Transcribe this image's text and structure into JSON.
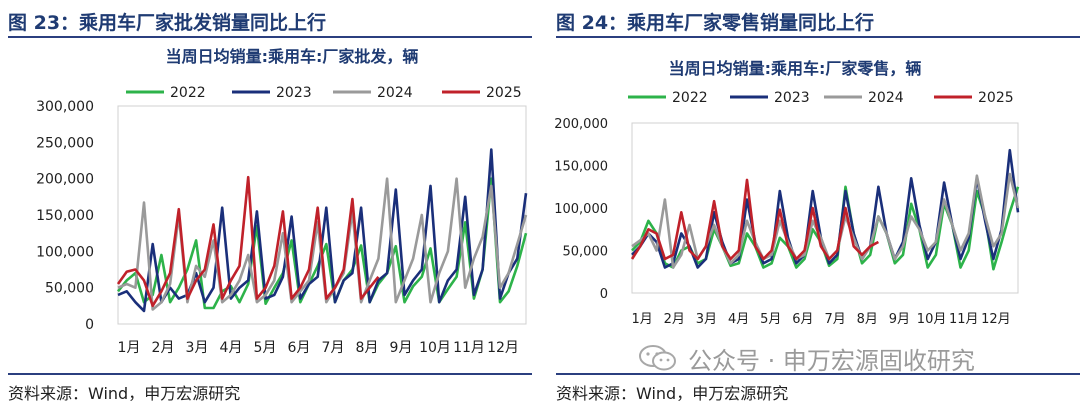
{
  "charts": [
    {
      "figure_title": "图 23：乘用车厂家批发销量同比上行",
      "source": "资料来源：Wind，申万宏源研究"
    },
    {
      "figure_title": "图 24：乘用车厂家零售销量同比上行",
      "source": "资料来源：Wind，申万宏源研究"
    }
  ],
  "watermark": {
    "text": "公众号 · 申万宏源固收研究",
    "icon": "wechat-icon"
  },
  "chart_data": [
    {
      "type": "line",
      "title": "当周日均销量:乘用车:厂家批发，辆",
      "xlabel": "",
      "ylabel": "",
      "x_ticks": [
        "1月",
        "2月",
        "3月",
        "4月",
        "5月",
        "6月",
        "7月",
        "8月",
        "9月",
        "10月",
        "11月",
        "12月"
      ],
      "y_ticks": [
        "0",
        "50,000",
        "100,000",
        "150,000",
        "200,000",
        "250,000",
        "300,000"
      ],
      "ylim": [
        0,
        300000
      ],
      "legend": "top",
      "series": [
        {
          "name": "2022",
          "color": "#2db34a",
          "values": [
            45000,
            60000,
            70000,
            30000,
            40000,
            95000,
            30000,
            50000,
            75000,
            115000,
            22000,
            22000,
            45000,
            52000,
            30000,
            55000,
            135000,
            28000,
            50000,
            70000,
            115000,
            30000,
            55000,
            80000,
            110000,
            30000,
            60000,
            75000,
            108000,
            30000,
            55000,
            70000,
            107000,
            30000,
            52000,
            65000,
            104000,
            30000,
            48000,
            65000,
            140000,
            35000,
            75000,
            200000,
            30000,
            45000,
            80000,
            125000
          ]
        },
        {
          "name": "2023",
          "color": "#1a2f7a",
          "values": [
            40000,
            45000,
            30000,
            18000,
            110000,
            30000,
            50000,
            35000,
            40000,
            70000,
            30000,
            50000,
            160000,
            35000,
            50000,
            60000,
            155000,
            35000,
            40000,
            65000,
            148000,
            35000,
            55000,
            65000,
            160000,
            30000,
            60000,
            70000,
            160000,
            30000,
            60000,
            70000,
            185000,
            40000,
            60000,
            75000,
            190000,
            30000,
            60000,
            75000,
            175000,
            40000,
            75000,
            240000,
            35000,
            70000,
            90000,
            180000
          ]
        },
        {
          "name": "2024",
          "color": "#9a9a9a",
          "values": [
            50000,
            55000,
            50000,
            167000,
            20000,
            30000,
            55000,
            150000,
            30000,
            80000,
            65000,
            115000,
            30000,
            40000,
            60000,
            95000,
            30000,
            40000,
            60000,
            125000,
            30000,
            45000,
            60000,
            140000,
            30000,
            50000,
            70000,
            155000,
            30000,
            60000,
            90000,
            200000,
            30000,
            60000,
            90000,
            150000,
            30000,
            70000,
            100000,
            200000,
            50000,
            90000,
            120000,
            190000,
            50000,
            70000,
            110000,
            150000
          ]
        },
        {
          "name": "2025",
          "color": "#c0212a",
          "values": [
            55000,
            72000,
            75000,
            60000,
            25000,
            45000,
            70000,
            158000,
            35000,
            60000,
            75000,
            137000,
            35000,
            60000,
            80000,
            202000,
            35000,
            50000,
            80000,
            155000,
            35000,
            50000,
            75000,
            160000,
            35000,
            50000,
            75000,
            172000,
            35000,
            50000,
            65000
          ]
        }
      ]
    },
    {
      "type": "line",
      "title": "当周日均销量:乘用车:厂家零售，辆",
      "xlabel": "",
      "ylabel": "",
      "x_ticks": [
        "1月",
        "2月",
        "3月",
        "4月",
        "5月",
        "6月",
        "7月",
        "8月",
        "9月",
        "10月",
        "11月",
        "12月"
      ],
      "y_ticks": [
        "0",
        "50,000",
        "100,000",
        "150,000",
        "200,000"
      ],
      "ylim": [
        0,
        200000
      ],
      "legend": "top",
      "series": [
        {
          "name": "2022",
          "color": "#2db34a",
          "values": [
            50000,
            60000,
            85000,
            70000,
            35000,
            30000,
            50000,
            55000,
            35000,
            40000,
            75000,
            55000,
            32000,
            35000,
            70000,
            55000,
            30000,
            35000,
            65000,
            55000,
            30000,
            40000,
            75000,
            60000,
            32000,
            40000,
            125000,
            70000,
            35000,
            45000,
            90000,
            70000,
            35000,
            45000,
            105000,
            75000,
            30000,
            45000,
            105000,
            80000,
            30000,
            50000,
            120000,
            90000,
            28000,
            60000,
            95000,
            125000
          ]
        },
        {
          "name": "2023",
          "color": "#1a2f7a",
          "values": [
            45000,
            55000,
            70000,
            60000,
            30000,
            35000,
            70000,
            55000,
            30000,
            40000,
            95000,
            60000,
            35000,
            40000,
            110000,
            60000,
            35000,
            40000,
            120000,
            65000,
            35000,
            45000,
            120000,
            65000,
            35000,
            45000,
            120000,
            70000,
            40000,
            55000,
            125000,
            70000,
            40000,
            60000,
            135000,
            80000,
            40000,
            60000,
            130000,
            80000,
            40000,
            65000,
            135000,
            85000,
            40000,
            75000,
            168000,
            95000
          ]
        },
        {
          "name": "2024",
          "color": "#9a9a9a",
          "values": [
            55000,
            62000,
            70000,
            50000,
            110000,
            30000,
            45000,
            80000,
            40000,
            55000,
            80000,
            55000,
            35000,
            45000,
            85000,
            60000,
            40000,
            45000,
            85000,
            60000,
            40000,
            45000,
            85000,
            65000,
            40000,
            50000,
            90000,
            65000,
            40000,
            55000,
            90000,
            70000,
            40000,
            55000,
            90000,
            75000,
            50000,
            60000,
            110000,
            80000,
            50000,
            70000,
            138000,
            90000,
            55000,
            70000,
            140000,
            100000
          ]
        },
        {
          "name": "2025",
          "color": "#c0212a",
          "values": [
            40000,
            55000,
            75000,
            70000,
            40000,
            45000,
            95000,
            50000,
            40000,
            55000,
            108000,
            55000,
            40000,
            50000,
            133000,
            55000,
            40000,
            50000,
            98000,
            55000,
            40000,
            50000,
            100000,
            55000,
            40000,
            50000,
            100000,
            55000,
            45000,
            55000,
            60000
          ]
        }
      ]
    }
  ]
}
